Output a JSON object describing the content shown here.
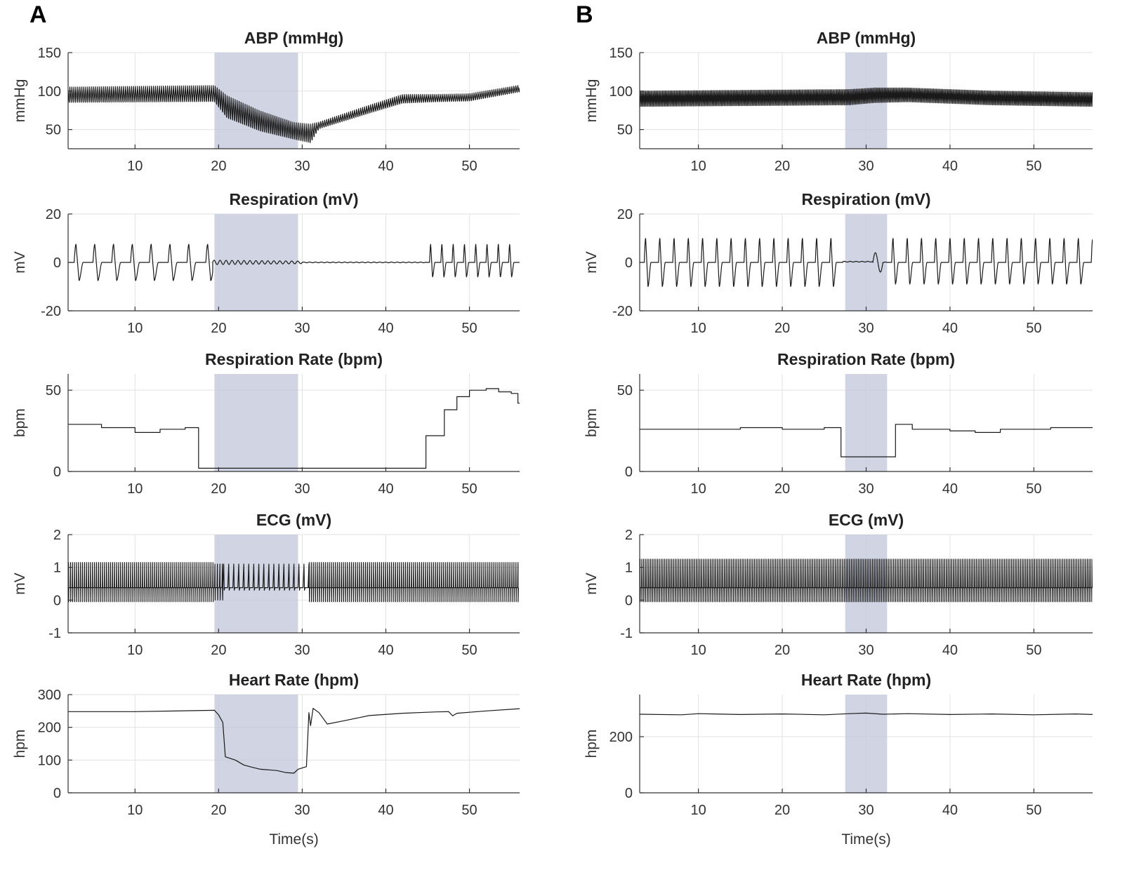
{
  "chart_data": [
    {
      "panel": "A",
      "type": "line",
      "xlabel": "Time(s)",
      "xlim": [
        2,
        56
      ],
      "xticks": [
        10,
        20,
        30,
        40,
        50
      ],
      "shaded_interval": [
        19.5,
        29.5
      ],
      "subplots": [
        {
          "id": "abp",
          "title": "ABP (mmHg)",
          "ylabel": "mmHg",
          "ylim": [
            25,
            150
          ],
          "yticks": [
            50,
            100,
            150
          ],
          "signal": "oscillation",
          "freq_hz": 4.2,
          "envelope": [
            [
              2,
              83,
              106
            ],
            [
              19.5,
              84,
              108
            ],
            [
              21,
              62,
              95
            ],
            [
              25,
              45,
              75
            ],
            [
              29,
              35,
              60
            ],
            [
              31,
              30,
              58
            ],
            [
              32,
              50,
              60
            ],
            [
              38,
              70,
              82
            ],
            [
              42,
              83,
              96
            ],
            [
              46,
              85,
              96
            ],
            [
              50,
              86,
              97
            ],
            [
              56,
              98,
              108
            ]
          ]
        },
        {
          "id": "resp",
          "title": "Respiration (mV)",
          "ylabel": "mV",
          "ylim": [
            -20,
            20
          ],
          "yticks": [
            -20,
            0,
            20
          ],
          "signal": "breath",
          "segments": [
            {
              "from": 2,
              "to": 19.3,
              "period": 2.25,
              "pos": 7.5,
              "neg": -7.5
            },
            {
              "from": 19.3,
              "to": 30,
              "wobble": 0.9,
              "freq_hz": 1.4
            },
            {
              "from": 30,
              "to": 44.8,
              "flat": 0
            },
            {
              "from": 44.8,
              "to": 56,
              "period": 1.35,
              "pos": 7.5,
              "neg": -6
            }
          ]
        },
        {
          "id": "resp_rate",
          "title": "Respiration Rate (bpm)",
          "ylabel": "bpm",
          "ylim": [
            0,
            60
          ],
          "yticks": [
            0,
            50
          ],
          "signal": "step",
          "steps": [
            [
              2,
              29
            ],
            [
              6,
              27
            ],
            [
              10,
              24
            ],
            [
              13,
              26
            ],
            [
              16,
              27
            ],
            [
              17.6,
              2
            ],
            [
              44.8,
              22
            ],
            [
              47,
              38
            ],
            [
              48.5,
              46
            ],
            [
              50,
              50
            ],
            [
              52,
              51
            ],
            [
              53.5,
              49
            ],
            [
              55,
              48
            ],
            [
              55.8,
              42
            ],
            [
              56,
              42
            ]
          ]
        },
        {
          "id": "ecg",
          "title": "ECG (mV)",
          "ylabel": "mV",
          "ylim": [
            -1,
            2
          ],
          "yticks": [
            -1,
            0,
            1,
            2
          ],
          "signal": "spikes",
          "baseline": 0.38,
          "segments": [
            {
              "from": 2,
              "to": 19.5,
              "period": 0.24,
              "hi": 1.15,
              "lo": -0.05
            },
            {
              "from": 19.5,
              "to": 20.5,
              "period": 0.3,
              "hi": 1.1,
              "lo": 0.0
            },
            {
              "from": 20.5,
              "to": 30.8,
              "period": 0.6,
              "hi": 1.1,
              "lo": 0.3
            },
            {
              "from": 30.8,
              "to": 56,
              "period": 0.24,
              "hi": 1.15,
              "lo": -0.05
            }
          ]
        },
        {
          "id": "hr",
          "title": "Heart Rate (hpm)",
          "ylabel": "hpm",
          "ylim": [
            0,
            300
          ],
          "yticks": [
            0,
            100,
            200,
            300
          ],
          "signal": "polyline",
          "points": [
            [
              2,
              248
            ],
            [
              10,
              248
            ],
            [
              19.5,
              252
            ],
            [
              20,
              238
            ],
            [
              20.5,
              215
            ],
            [
              20.8,
              110
            ],
            [
              22,
              100
            ],
            [
              23,
              85
            ],
            [
              24,
              78
            ],
            [
              25,
              72
            ],
            [
              26,
              70
            ],
            [
              27,
              68
            ],
            [
              28,
              62
            ],
            [
              29,
              60
            ],
            [
              29.5,
              72
            ],
            [
              30.5,
              80
            ],
            [
              30.8,
              245
            ],
            [
              31,
              205
            ],
            [
              31.3,
              258
            ],
            [
              32,
              245
            ],
            [
              33,
              210
            ],
            [
              35,
              220
            ],
            [
              38,
              236
            ],
            [
              42,
              243
            ],
            [
              46,
              247
            ],
            [
              47.5,
              248
            ],
            [
              48,
              235
            ],
            [
              48.5,
              243
            ],
            [
              52,
              250
            ],
            [
              56,
              257
            ]
          ]
        }
      ]
    },
    {
      "panel": "B",
      "type": "line",
      "xlabel": "Time(s)",
      "xlim": [
        3,
        57
      ],
      "xticks": [
        10,
        20,
        30,
        40,
        50
      ],
      "shaded_interval": [
        27.5,
        32.5
      ],
      "subplots": [
        {
          "id": "abp",
          "title": "ABP (mmHg)",
          "ylabel": "mmHg",
          "ylim": [
            25,
            150
          ],
          "yticks": [
            50,
            100,
            150
          ],
          "signal": "oscillation",
          "freq_hz": 6.5,
          "envelope": [
            [
              3,
              80,
              100
            ],
            [
              28,
              82,
              102
            ],
            [
              31,
              85,
              104
            ],
            [
              35,
              86,
              104
            ],
            [
              45,
              82,
              100
            ],
            [
              57,
              80,
              98
            ]
          ]
        },
        {
          "id": "resp",
          "title": "Respiration (mV)",
          "ylabel": "mV",
          "ylim": [
            -20,
            20
          ],
          "yticks": [
            -20,
            0,
            20
          ],
          "signal": "breath",
          "segments": [
            {
              "from": 3,
              "to": 27.2,
              "period": 1.7,
              "pos": 10,
              "neg": -10
            },
            {
              "from": 27.2,
              "to": 30.8,
              "flat": 0.3
            },
            {
              "from": 30.8,
              "to": 32.0,
              "bump": 4,
              "dip": -4
            },
            {
              "from": 32.0,
              "to": 32.5,
              "flat": 0
            },
            {
              "from": 32.5,
              "to": 57,
              "period": 1.7,
              "pos": 10,
              "neg": -9
            }
          ]
        },
        {
          "id": "resp_rate",
          "title": "Respiration Rate (bpm)",
          "ylabel": "bpm",
          "ylim": [
            0,
            60
          ],
          "yticks": [
            0,
            50
          ],
          "signal": "step",
          "steps": [
            [
              3,
              26
            ],
            [
              10,
              26
            ],
            [
              15,
              27
            ],
            [
              20,
              26
            ],
            [
              25,
              27
            ],
            [
              27,
              9
            ],
            [
              33.5,
              29
            ],
            [
              35.5,
              26
            ],
            [
              40,
              25
            ],
            [
              43,
              24
            ],
            [
              46,
              26
            ],
            [
              52,
              27
            ],
            [
              57,
              27
            ]
          ]
        },
        {
          "id": "ecg",
          "title": "ECG (mV)",
          "ylabel": "mV",
          "ylim": [
            -1,
            2
          ],
          "yticks": [
            -1,
            0,
            1,
            2
          ],
          "signal": "spikes",
          "baseline": 0.38,
          "segments": [
            {
              "from": 3,
              "to": 57,
              "period": 0.21,
              "hi": 1.25,
              "lo": -0.05
            }
          ]
        },
        {
          "id": "hr",
          "title": "Heart Rate (hpm)",
          "ylabel": "hpm",
          "ylim": [
            0,
            350
          ],
          "yticks": [
            0,
            200
          ],
          "signal": "polyline",
          "points": [
            [
              3,
              280
            ],
            [
              8,
              278
            ],
            [
              10,
              282
            ],
            [
              15,
              279
            ],
            [
              20,
              281
            ],
            [
              25,
              278
            ],
            [
              28,
              282
            ],
            [
              30,
              284
            ],
            [
              32,
              280
            ],
            [
              35,
              282
            ],
            [
              40,
              279
            ],
            [
              45,
              281
            ],
            [
              50,
              278
            ],
            [
              55,
              281
            ],
            [
              57,
              279
            ]
          ]
        }
      ]
    }
  ]
}
